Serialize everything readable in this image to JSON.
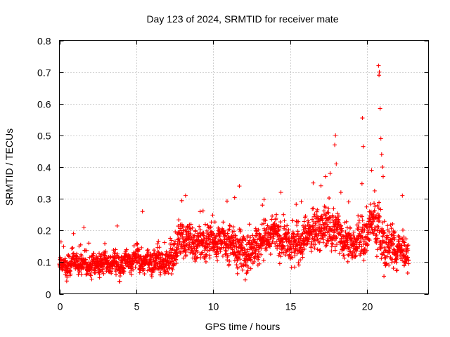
{
  "chart_data": {
    "type": "scatter",
    "title": "Day 123 of 2024, SRMTID for receiver mate",
    "xlabel": "GPS time / hours",
    "ylabel": "SRMTID / TECUs",
    "xlim": [
      0,
      24
    ],
    "ylim": [
      0,
      0.8
    ],
    "xticks": [
      0,
      5,
      10,
      15,
      20
    ],
    "xtick_labels": [
      "0",
      "5",
      "10",
      "15",
      "20"
    ],
    "yticks": [
      0,
      0.1,
      0.2,
      0.3,
      0.4,
      0.5,
      0.6,
      0.7,
      0.8
    ],
    "ytick_labels": [
      "0",
      "0.1",
      "0.2",
      "0.3",
      "0.4",
      "0.5",
      "0.6",
      "0.7",
      "0.8"
    ],
    "grid": true,
    "marker": "+",
    "series": [
      {
        "name": "SRMTID",
        "color": "#ff0000",
        "trend": {
          "x": [
            0,
            1,
            2,
            3,
            4,
            5,
            6,
            7,
            7.5,
            8,
            9,
            10,
            11,
            12,
            13,
            14,
            15,
            16,
            17,
            18,
            19,
            20,
            20.5,
            21,
            22,
            22.7
          ],
          "y": [
            0.08,
            0.1,
            0.09,
            0.1,
            0.09,
            0.11,
            0.1,
            0.1,
            0.13,
            0.18,
            0.15,
            0.17,
            0.16,
            0.13,
            0.16,
            0.19,
            0.15,
            0.18,
            0.21,
            0.2,
            0.15,
            0.19,
            0.24,
            0.16,
            0.14,
            0.13
          ]
        },
        "spread": {
          "x": [
            0,
            5,
            7.5,
            8,
            10,
            12,
            14,
            16,
            17,
            18,
            19,
            20,
            21,
            22,
            22.7
          ],
          "y": [
            0.025,
            0.03,
            0.04,
            0.05,
            0.04,
            0.05,
            0.05,
            0.05,
            0.06,
            0.05,
            0.045,
            0.06,
            0.07,
            0.05,
            0.04
          ]
        },
        "spikes": [
          {
            "x": 5.4,
            "y": 0.26
          },
          {
            "x": 8.2,
            "y": 0.31
          },
          {
            "x": 11.7,
            "y": 0.34
          },
          {
            "x": 13.2,
            "y": 0.28
          },
          {
            "x": 14.4,
            "y": 0.32
          },
          {
            "x": 16.5,
            "y": 0.35
          },
          {
            "x": 17.3,
            "y": 0.37
          },
          {
            "x": 17.6,
            "y": 0.38
          },
          {
            "x": 17.9,
            "y": 0.47
          },
          {
            "x": 17.95,
            "y": 0.5
          },
          {
            "x": 18.0,
            "y": 0.41
          },
          {
            "x": 18.3,
            "y": 0.32
          },
          {
            "x": 19.7,
            "y": 0.555
          },
          {
            "x": 19.75,
            "y": 0.465
          },
          {
            "x": 20.3,
            "y": 0.39
          },
          {
            "x": 20.75,
            "y": 0.72
          },
          {
            "x": 20.8,
            "y": 0.7
          },
          {
            "x": 20.78,
            "y": 0.69
          },
          {
            "x": 20.85,
            "y": 0.585
          },
          {
            "x": 20.9,
            "y": 0.49
          },
          {
            "x": 20.95,
            "y": 0.44
          },
          {
            "x": 21.0,
            "y": 0.4
          },
          {
            "x": 21.05,
            "y": 0.37
          },
          {
            "x": 22.3,
            "y": 0.31
          }
        ]
      }
    ]
  }
}
